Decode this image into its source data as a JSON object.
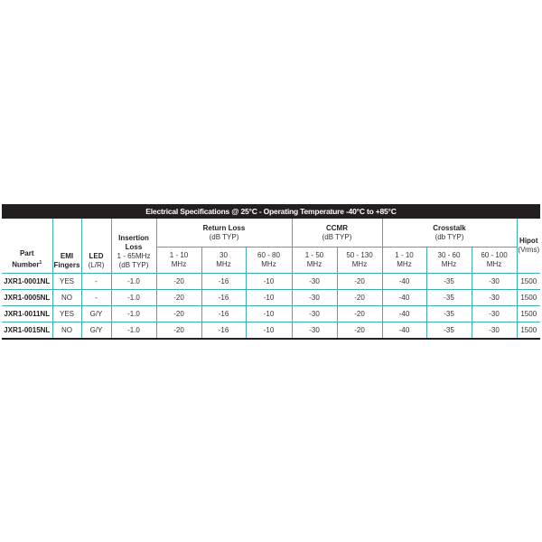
{
  "title": "Electrical Specifications @ 25°C - Operating Temperature -40°C to +85°C",
  "headers": {
    "part": "Part",
    "part2": "Number",
    "part_note": "1",
    "emi": "EMI",
    "emi2": "Fingers",
    "led": "LED",
    "led2": "(L/R)",
    "insertion": "Insertion",
    "insertion2": "Loss",
    "insertion3": "1 - 65MHz",
    "insertion4": "(dB TYP)",
    "return_loss": "Return Loss",
    "return_loss_unit": "(dB TYP)",
    "ccmr": "CCMR",
    "ccmr_unit": "(dB TYP)",
    "crosstalk": "Crosstalk",
    "crosstalk_unit": "(db TYP)",
    "hipot": "Hipot",
    "hipot_unit": "(Vrms)",
    "rl_sub": [
      [
        "1 - 10",
        "MHz"
      ],
      [
        "30",
        "MHz"
      ],
      [
        "60 - 80",
        "MHz"
      ]
    ],
    "ccmr_sub": [
      [
        "1 - 50",
        "MHz"
      ],
      [
        "50 - 130",
        "MHz"
      ]
    ],
    "xt_sub": [
      [
        "1 - 10",
        "MHz"
      ],
      [
        "30 - 60",
        "MHz"
      ],
      [
        "60 - 100",
        "MHz"
      ]
    ]
  },
  "rows": [
    [
      "JXR1-0001NL",
      "YES",
      "-",
      "-1.0",
      "-20",
      "-16",
      "-10",
      "-30",
      "-20",
      "-40",
      "-35",
      "-30",
      "1500"
    ],
    [
      "JXR1-0005NL",
      "NO",
      "-",
      "-1.0",
      "-20",
      "-16",
      "-10",
      "-30",
      "-20",
      "-40",
      "-35",
      "-30",
      "1500"
    ],
    [
      "JXR1-0011NL",
      "YES",
      "G/Y",
      "-1.0",
      "-20",
      "-16",
      "-10",
      "-30",
      "-20",
      "-40",
      "-35",
      "-30",
      "1500"
    ],
    [
      "JXR1-0015NL",
      "NO",
      "G/Y",
      "-1.0",
      "-20",
      "-16",
      "-10",
      "-30",
      "-20",
      "-40",
      "-35",
      "-30",
      "1500"
    ]
  ],
  "colors": {
    "border": "#3bb0ad",
    "title_bg": "#231f20"
  }
}
